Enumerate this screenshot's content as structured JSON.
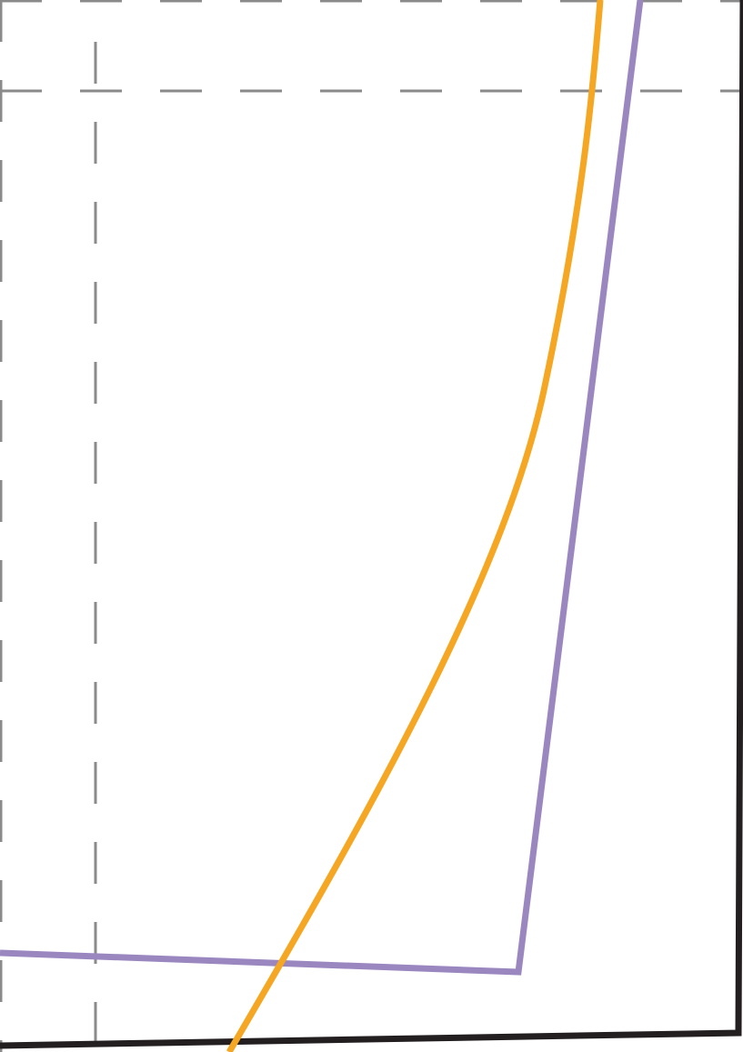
{
  "diagram": {
    "background": "#ffffff",
    "guides": {
      "color": "#8a8a8a",
      "style": "dashed"
    },
    "outline": {
      "color": "#231f20"
    },
    "curves": [
      {
        "name": "orange-curve",
        "color": "#f5a623"
      },
      {
        "name": "purple-polyline",
        "color": "#9b87c0"
      }
    ]
  }
}
